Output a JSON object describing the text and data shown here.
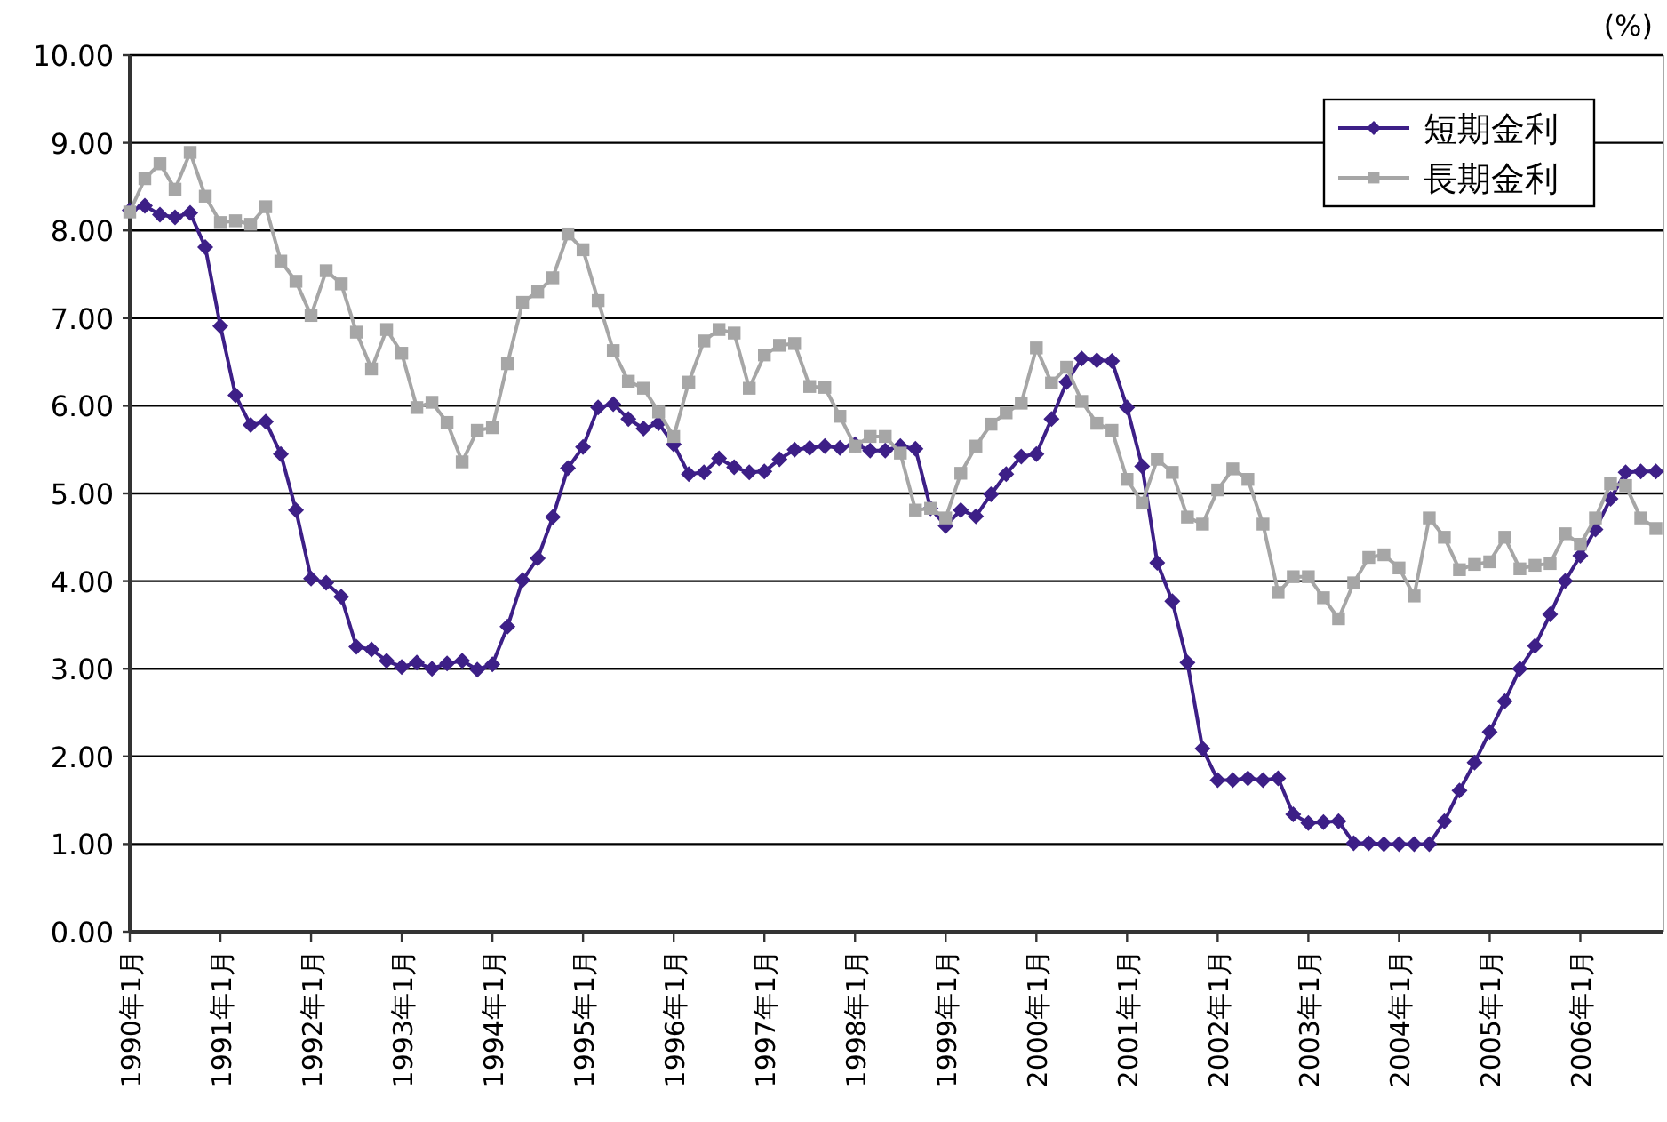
{
  "chart_data": {
    "type": "line",
    "ylabel": "(%)",
    "x": [
      "1990-01",
      "1990-03",
      "1990-05",
      "1990-07",
      "1990-09",
      "1990-11",
      "1991-01",
      "1991-03",
      "1991-05",
      "1991-07",
      "1991-09",
      "1991-11",
      "1992-01",
      "1992-03",
      "1992-05",
      "1992-07",
      "1992-09",
      "1992-11",
      "1993-01",
      "1993-03",
      "1993-05",
      "1993-07",
      "1993-09",
      "1993-11",
      "1994-01",
      "1994-03",
      "1994-05",
      "1994-07",
      "1994-09",
      "1994-11",
      "1995-01",
      "1995-03",
      "1995-05",
      "1995-07",
      "1995-09",
      "1995-11",
      "1996-01",
      "1996-03",
      "1996-05",
      "1996-07",
      "1996-09",
      "1996-11",
      "1997-01",
      "1997-03",
      "1997-05",
      "1997-07",
      "1997-09",
      "1997-11",
      "1998-01",
      "1998-03",
      "1998-05",
      "1998-07",
      "1998-09",
      "1998-11",
      "1999-01",
      "1999-03",
      "1999-05",
      "1999-07",
      "1999-09",
      "1999-11",
      "2000-01",
      "2000-03",
      "2000-05",
      "2000-07",
      "2000-09",
      "2000-11",
      "2001-01",
      "2001-03",
      "2001-05",
      "2001-07",
      "2001-09",
      "2001-11",
      "2002-01",
      "2002-03",
      "2002-05",
      "2002-07",
      "2002-09",
      "2002-11",
      "2003-01",
      "2003-03",
      "2003-05",
      "2003-07",
      "2003-09",
      "2003-11",
      "2004-01",
      "2004-03",
      "2004-05",
      "2004-07",
      "2004-09",
      "2004-11",
      "2005-01",
      "2005-03",
      "2005-05",
      "2005-07",
      "2005-09",
      "2005-11",
      "2006-01",
      "2006-03",
      "2006-05",
      "2006-07",
      "2006-09",
      "2006-11"
    ],
    "series": [
      {
        "name": "短期金利",
        "color": "#3d1f87",
        "marker": "diamond",
        "values": [
          8.23,
          8.28,
          8.18,
          8.15,
          8.2,
          7.81,
          6.91,
          6.12,
          5.78,
          5.82,
          5.45,
          4.81,
          4.03,
          3.98,
          3.82,
          3.25,
          3.22,
          3.09,
          3.02,
          3.07,
          3.0,
          3.06,
          3.09,
          2.99,
          3.05,
          3.48,
          4.01,
          4.26,
          4.73,
          5.29,
          5.53,
          5.98,
          6.02,
          5.85,
          5.74,
          5.8,
          5.56,
          5.22,
          5.24,
          5.4,
          5.3,
          5.24,
          5.25,
          5.39,
          5.5,
          5.52,
          5.54,
          5.52,
          5.56,
          5.49,
          5.49,
          5.54,
          5.51,
          4.83,
          4.63,
          4.81,
          4.74,
          4.99,
          5.22,
          5.42,
          5.45,
          5.85,
          6.27,
          6.54,
          6.52,
          6.51,
          5.98,
          5.31,
          4.21,
          3.77,
          3.07,
          2.09,
          1.73,
          1.73,
          1.75,
          1.73,
          1.75,
          1.34,
          1.24,
          1.25,
          1.26,
          1.01,
          1.01,
          1.0,
          1.0,
          1.0,
          1.0,
          1.26,
          1.61,
          1.93,
          2.28,
          2.63,
          3.0,
          3.26,
          3.62,
          4.0,
          4.29,
          4.59,
          4.94,
          5.24,
          5.25,
          5.25
        ]
      },
      {
        "name": "長期金利",
        "color": "#a6a6a6",
        "marker": "square",
        "values": [
          8.21,
          8.59,
          8.76,
          8.47,
          8.89,
          8.39,
          8.09,
          8.11,
          8.07,
          8.27,
          7.65,
          7.42,
          7.03,
          7.54,
          7.39,
          6.84,
          6.42,
          6.87,
          6.6,
          5.98,
          6.04,
          5.81,
          5.36,
          5.72,
          5.75,
          6.48,
          7.18,
          7.3,
          7.46,
          7.96,
          7.78,
          7.2,
          6.63,
          6.28,
          6.2,
          5.93,
          5.65,
          6.27,
          6.74,
          6.87,
          6.83,
          6.2,
          6.58,
          6.69,
          6.71,
          6.22,
          6.21,
          5.88,
          5.54,
          5.65,
          5.65,
          5.46,
          4.81,
          4.83,
          4.72,
          5.23,
          5.54,
          5.79,
          5.92,
          6.03,
          6.66,
          6.26,
          6.44,
          6.05,
          5.8,
          5.72,
          5.16,
          4.89,
          5.39,
          5.24,
          4.73,
          4.65,
          5.04,
          5.28,
          5.16,
          4.65,
          3.87,
          4.05,
          4.05,
          3.81,
          3.57,
          3.98,
          4.27,
          4.3,
          4.15,
          3.83,
          4.72,
          4.5,
          4.13,
          4.19,
          4.22,
          4.5,
          4.14,
          4.18,
          4.2,
          4.54,
          4.42,
          4.72,
          5.11,
          5.09,
          4.72,
          4.6
        ]
      }
    ],
    "xlim": [
      "1990-01",
      "2006-12"
    ],
    "xticks": [
      {
        "value": "1990-01",
        "label": "1990年1月"
      },
      {
        "value": "1991-01",
        "label": "1991年1月"
      },
      {
        "value": "1992-01",
        "label": "1992年1月"
      },
      {
        "value": "1993-01",
        "label": "1993年1月"
      },
      {
        "value": "1994-01",
        "label": "1994年1月"
      },
      {
        "value": "1995-01",
        "label": "1995年1月"
      },
      {
        "value": "1996-01",
        "label": "1996年1月"
      },
      {
        "value": "1997-01",
        "label": "1997年1月"
      },
      {
        "value": "1998-01",
        "label": "1998年1月"
      },
      {
        "value": "1999-01",
        "label": "1999年1月"
      },
      {
        "value": "2000-01",
        "label": "2000年1月"
      },
      {
        "value": "2001-01",
        "label": "2001年1月"
      },
      {
        "value": "2002-01",
        "label": "2002年1月"
      },
      {
        "value": "2003-01",
        "label": "2003年1月"
      },
      {
        "value": "2004-01",
        "label": "2004年1月"
      },
      {
        "value": "2005-01",
        "label": "2005年1月"
      },
      {
        "value": "2006-01",
        "label": "2006年1月"
      }
    ],
    "ylim": [
      0,
      10
    ],
    "yticks": [
      {
        "value": 0,
        "label": "0.00"
      },
      {
        "value": 1,
        "label": "1.00"
      },
      {
        "value": 2,
        "label": "2.00"
      },
      {
        "value": 3,
        "label": "3.00"
      },
      {
        "value": 4,
        "label": "4.00"
      },
      {
        "value": 5,
        "label": "5.00"
      },
      {
        "value": 6,
        "label": "6.00"
      },
      {
        "value": 7,
        "label": "7.00"
      },
      {
        "value": 8,
        "label": "8.00"
      },
      {
        "value": 9,
        "label": "9.00"
      },
      {
        "value": 10,
        "label": "10.00"
      }
    ],
    "grid": "y",
    "legend": "top right",
    "line_style": "solid"
  }
}
